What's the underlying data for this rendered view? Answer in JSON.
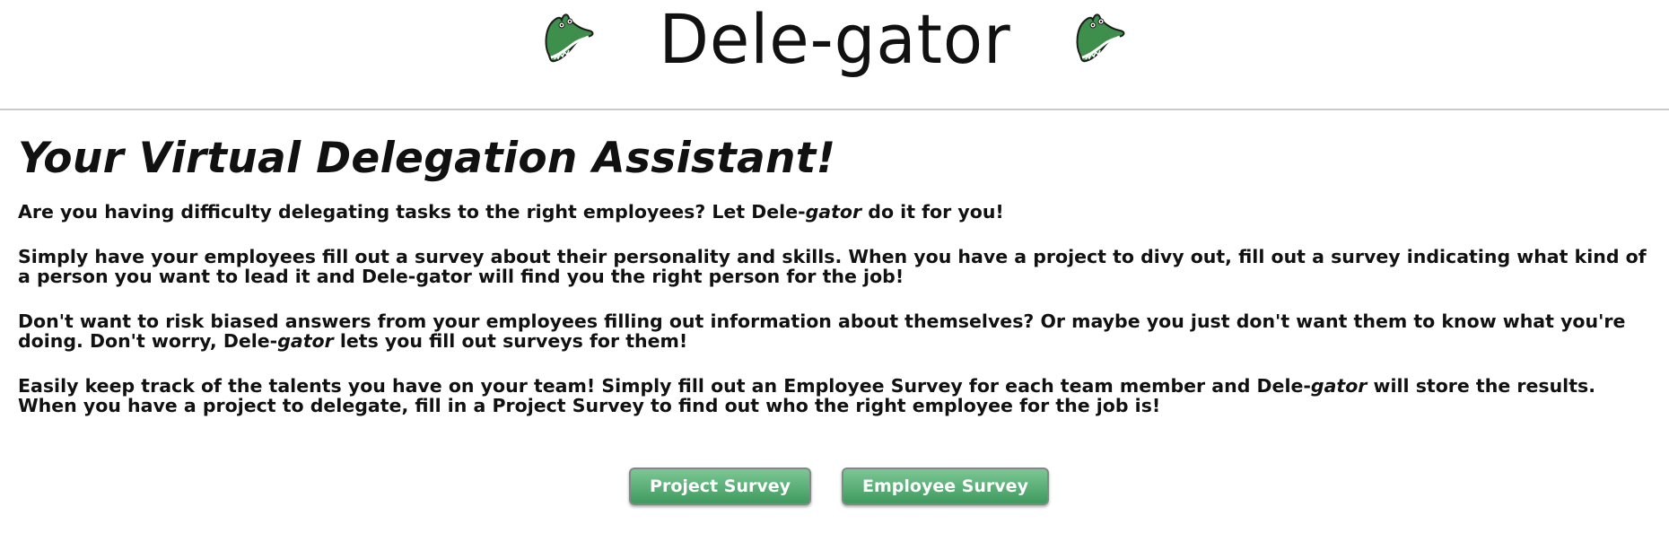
{
  "header": {
    "brand": "Dele-gator",
    "logo_icon": "alligator-head-icon"
  },
  "main": {
    "heading": "Your Virtual Delegation Assistant!",
    "p1": {
      "before": "Are you having difficulty delegating tasks to the right employees? Let Dele-",
      "em": "gator",
      "after": " do it for you!"
    },
    "p2": "Simply have your employees fill out a survey about their personality and skills. When you have a project to divy out, fill out a survey indicating what kind of a person you want to lead it and Dele-gator will find you the right person for the job!",
    "p3": {
      "before": "Don't want to risk biased answers from your employees filling out information about themselves? Or maybe you just don't want them to know what you're doing. Don't worry, Dele-",
      "em": "gator",
      "after": " lets you fill out surveys for them!"
    },
    "p4": {
      "before": "Easily keep track of the talents you have on your team! Simply fill out an Employee Survey for each team member and Dele-",
      "em": "gator",
      "after": " will store the results. When you have a project to delegate, fill in a Project Survey to find out who the right employee for the job is!"
    }
  },
  "buttons": {
    "project_survey": "Project Survey",
    "employee_survey": "Employee Survey"
  },
  "colors": {
    "button_top": "#7cc795",
    "button_bottom": "#3f9a5e",
    "gator_green": "#3f8f4c"
  }
}
